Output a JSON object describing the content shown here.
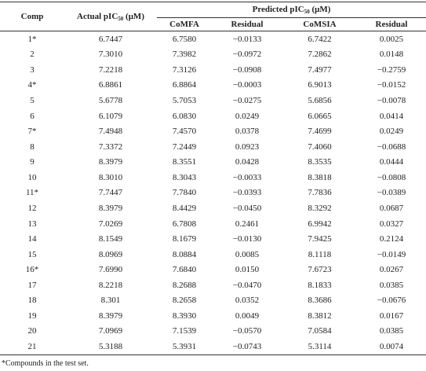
{
  "table": {
    "header": {
      "comp": "Comp",
      "actual": {
        "text": "Actual pIC",
        "sub": "50",
        "unit": " (μM)"
      },
      "predicted": {
        "text": "Predicted pIC",
        "sub": "50",
        "unit": " (μM)"
      },
      "columns": [
        "CoMFA",
        "Residual",
        "CoMSIA",
        "Residual"
      ]
    },
    "rows": [
      [
        "1*",
        "6.7447",
        "6.7580",
        "−0.0133",
        "6.7422",
        "0.0025"
      ],
      [
        "2",
        "7.3010",
        "7.3982",
        "−0.0972",
        "7.2862",
        "0.0148"
      ],
      [
        "3",
        "7.2218",
        "7.3126",
        "−0.0908",
        "7.4977",
        "−0.2759"
      ],
      [
        "4*",
        "6.8861",
        "6.8864",
        "−0.0003",
        "6.9013",
        "−0.0152"
      ],
      [
        "5",
        "5.6778",
        "5.7053",
        "−0.0275",
        "5.6856",
        "−0.0078"
      ],
      [
        "6",
        "6.1079",
        "6.0830",
        "0.0249",
        "6.0665",
        "0.0414"
      ],
      [
        "7*",
        "7.4948",
        "7.4570",
        "0.0378",
        "7.4699",
        "0.0249"
      ],
      [
        "8",
        "7.3372",
        "7.2449",
        "0.0923",
        "7.4060",
        "−0.0688"
      ],
      [
        "9",
        "8.3979",
        "8.3551",
        "0.0428",
        "8.3535",
        "0.0444"
      ],
      [
        "10",
        "8.3010",
        "8.3043",
        "−0.0033",
        "8.3818",
        "−0.0808"
      ],
      [
        "11*",
        "7.7447",
        "7.7840",
        "−0.0393",
        "7.7836",
        "−0.0389"
      ],
      [
        "12",
        "8.3979",
        "8.4429",
        "−0.0450",
        "8.3292",
        "0.0687"
      ],
      [
        "13",
        "7.0269",
        "6.7808",
        "0.2461",
        "6.9942",
        "0.0327"
      ],
      [
        "14",
        "8.1549",
        "8.1679",
        "−0.0130",
        "7.9425",
        "0.2124"
      ],
      [
        "15",
        "8.0969",
        "8.0884",
        "0.0085",
        "8.1118",
        "−0.0149"
      ],
      [
        "16*",
        "7.6990",
        "7.6840",
        "0.0150",
        "7.6723",
        "0.0267"
      ],
      [
        "17",
        "8.2218",
        "8.2688",
        "−0.0470",
        "8.1833",
        "0.0385"
      ],
      [
        "18",
        "8.301",
        "8.2658",
        "0.0352",
        "8.3686",
        "−0.0676"
      ],
      [
        "19",
        "8.3979",
        "8.3930",
        "0.0049",
        "8.3812",
        "0.0167"
      ],
      [
        "20",
        "7.0969",
        "7.1539",
        "−0.0570",
        "7.0584",
        "0.0385"
      ],
      [
        "21",
        "5.3188",
        "5.3931",
        "−0.0743",
        "5.3114",
        "0.0074"
      ]
    ],
    "footnote": "*Compounds in the test set."
  }
}
